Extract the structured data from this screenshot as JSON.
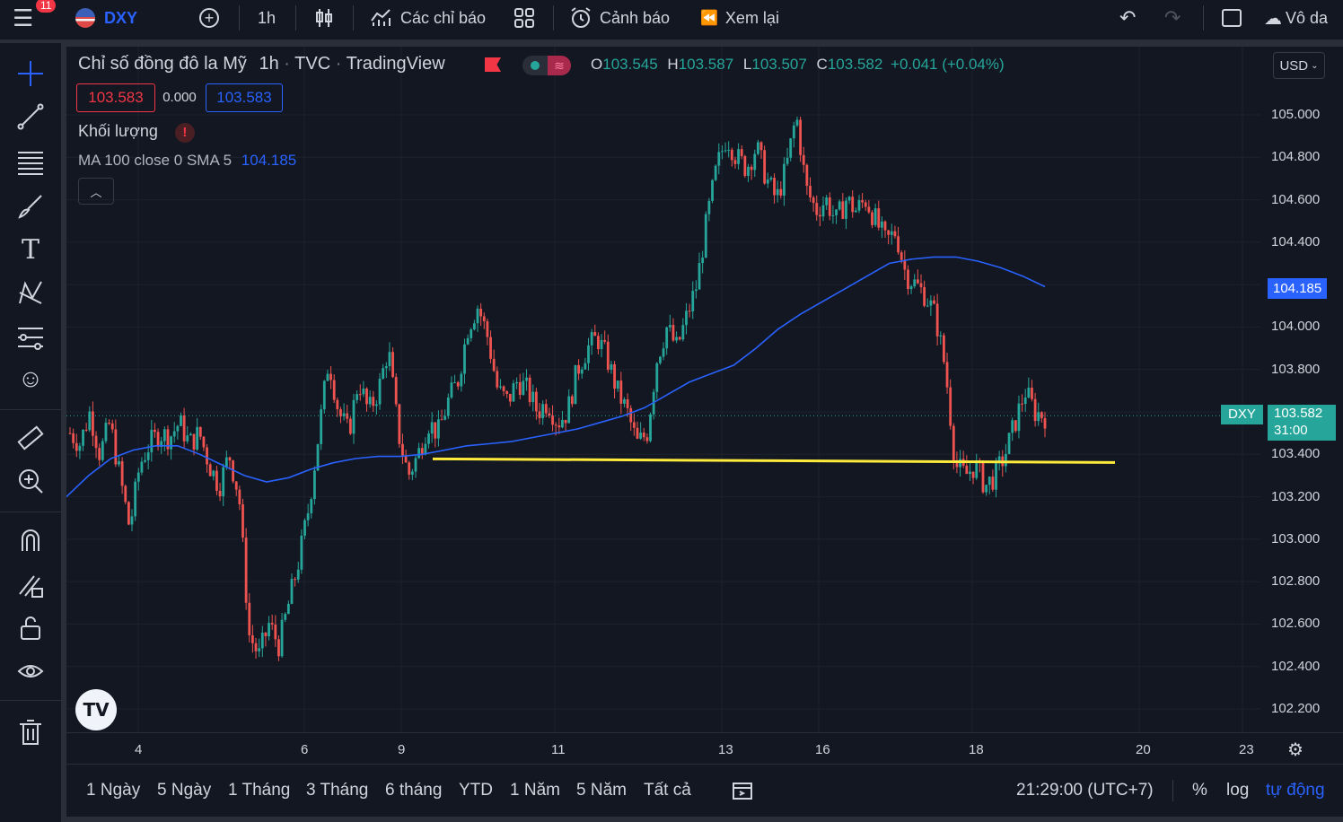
{
  "topbar": {
    "notif_count": "11",
    "symbol": "DXY",
    "interval": "1h",
    "indicators_label": "Các chỉ báo",
    "alerts_label": "Cảnh báo",
    "replay_label": "Xem lại",
    "more_label": "Vô da"
  },
  "legend": {
    "title": "Chỉ số đồng đô la Mỹ",
    "interval": "1h",
    "exchange": "TVC",
    "provider": "TradingView",
    "o_label": "O",
    "o_val": "103.545",
    "h_label": "H",
    "h_val": "103.587",
    "l_label": "L",
    "l_val": "103.507",
    "c_label": "C",
    "c_val": "103.582",
    "change": "+0.041 (+0.04%)",
    "bid": "103.583",
    "spread": "0.000",
    "ask": "103.583",
    "volume_label": "Khối lượng",
    "ma_label": "MA 100 close 0 SMA 5",
    "ma_value": "104.185"
  },
  "currency": "USD",
  "y_axis": [
    "105.000",
    "104.800",
    "104.600",
    "104.400",
    "104.185",
    "104.000",
    "103.800",
    "103.582",
    "103.400",
    "103.200",
    "103.000",
    "102.800",
    "102.600",
    "102.400",
    "102.200"
  ],
  "x_axis": [
    "4",
    "6",
    "9",
    "11",
    "13",
    "16",
    "18",
    "20",
    "23"
  ],
  "price_tag": {
    "symbol": "DXY",
    "value": "103.582",
    "countdown": "31:00"
  },
  "ma_tag": "104.185",
  "bottombar": {
    "ranges": [
      "1 Ngày",
      "5 Ngày",
      "1 Tháng",
      "3 Tháng",
      "6 tháng",
      "YTD",
      "1 Năm",
      "5 Năm",
      "Tất cả"
    ],
    "time": "21:29:00 (UTC+7)",
    "percent": "%",
    "log": "log",
    "auto": "tự động"
  },
  "colors": {
    "up": "#26a69a",
    "down": "#ef5350",
    "ma": "#2962ff",
    "support": "#ffeb3b",
    "background": "#131722"
  },
  "chart_data": {
    "type": "candlestick",
    "title": "Chỉ số đồng đô la Mỹ",
    "interval": "1h",
    "ylim": [
      102.1,
      105.2
    ],
    "x_ticks": [
      "4",
      "6",
      "9",
      "11",
      "13",
      "16",
      "18",
      "20",
      "23"
    ],
    "last_price": 103.582,
    "ohlc_last": {
      "o": 103.545,
      "h": 103.587,
      "l": 103.507,
      "c": 103.582
    },
    "ma_last": 104.185,
    "support_level": 103.37,
    "path": [
      103.5,
      103.45,
      103.6,
      103.4,
      103.55,
      103.3,
      103.05,
      103.35,
      103.45,
      103.5,
      103.48,
      103.55,
      103.45,
      103.5,
      103.35,
      103.25,
      103.4,
      103.2,
      102.55,
      102.45,
      102.6,
      102.5,
      102.7,
      102.9,
      103.15,
      103.5,
      103.85,
      103.6,
      103.5,
      103.75,
      103.6,
      103.7,
      103.9,
      103.5,
      103.3,
      103.4,
      103.55,
      103.5,
      103.65,
      103.75,
      104.0,
      104.1,
      103.95,
      103.7,
      103.65,
      103.75,
      103.7,
      103.6,
      103.65,
      103.55,
      103.6,
      103.8,
      103.9,
      103.95,
      103.85,
      103.7,
      103.6,
      103.45,
      103.5,
      103.85,
      104.0,
      103.9,
      104.05,
      104.2,
      104.5,
      104.75,
      104.9,
      104.8,
      104.75,
      104.85,
      104.7,
      104.6,
      104.75,
      105.0,
      104.65,
      104.55,
      104.6,
      104.5,
      104.6,
      104.55,
      104.6,
      104.5,
      104.4,
      104.45,
      104.25,
      104.2,
      104.15,
      104.05,
      103.8,
      103.35,
      103.3,
      103.35,
      103.25,
      103.3,
      103.4,
      103.55,
      103.7,
      103.6,
      103.58
    ],
    "ma_path": [
      103.2,
      103.3,
      103.38,
      103.42,
      103.44,
      103.44,
      103.4,
      103.35,
      103.3,
      103.27,
      103.29,
      103.33,
      103.36,
      103.38,
      103.39,
      103.39,
      103.4,
      103.42,
      103.44,
      103.45,
      103.46,
      103.48,
      103.5,
      103.52,
      103.55,
      103.58,
      103.62,
      103.68,
      103.74,
      103.78,
      103.82,
      103.9,
      103.99,
      104.06,
      104.12,
      104.18,
      104.24,
      104.3,
      104.32,
      104.33,
      104.33,
      104.31,
      104.28,
      104.24,
      104.19
    ]
  }
}
